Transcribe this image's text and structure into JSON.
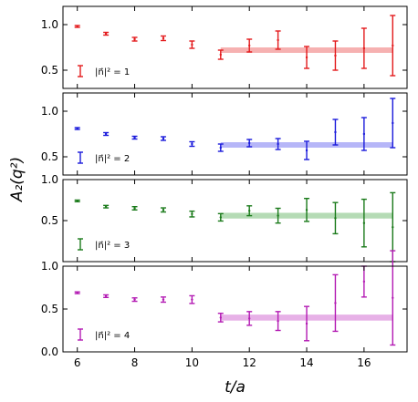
{
  "chart_data": [
    {
      "type": "scatter",
      "legend": "|n⃗|² = 1",
      "color": "#e31a1c",
      "band_color": "#f4a3a3",
      "ylim": [
        0.3,
        1.2
      ],
      "yticks": [
        0.5,
        1.0
      ],
      "ytick_labels": [
        "0.5",
        "1.0"
      ],
      "fit": {
        "x_start": 11,
        "x_end": 17,
        "value": 0.72,
        "err": 0.03
      },
      "points": [
        {
          "x": 6,
          "y": 0.98,
          "err": 0.01
        },
        {
          "x": 7,
          "y": 0.9,
          "err": 0.015
        },
        {
          "x": 8,
          "y": 0.84,
          "err": 0.02
        },
        {
          "x": 9,
          "y": 0.85,
          "err": 0.025
        },
        {
          "x": 10,
          "y": 0.78,
          "err": 0.04
        },
        {
          "x": 11,
          "y": 0.67,
          "err": 0.05
        },
        {
          "x": 12,
          "y": 0.77,
          "err": 0.07
        },
        {
          "x": 13,
          "y": 0.83,
          "err": 0.1
        },
        {
          "x": 14,
          "y": 0.64,
          "err": 0.12
        },
        {
          "x": 15,
          "y": 0.66,
          "err": 0.16
        },
        {
          "x": 16,
          "y": 0.74,
          "err": 0.22
        },
        {
          "x": 17,
          "y": 0.77,
          "err": 0.33
        }
      ]
    },
    {
      "type": "scatter",
      "legend": "|n⃗|² = 2",
      "color": "#1a1adb",
      "band_color": "#a9a9f7",
      "ylim": [
        0.3,
        1.2
      ],
      "yticks": [
        0.5,
        1.0
      ],
      "ytick_labels": [
        "0.5",
        "1.0"
      ],
      "fit": {
        "x_start": 11,
        "x_end": 17,
        "value": 0.63,
        "err": 0.03
      },
      "points": [
        {
          "x": 6,
          "y": 0.81,
          "err": 0.01
        },
        {
          "x": 7,
          "y": 0.75,
          "err": 0.015
        },
        {
          "x": 8,
          "y": 0.71,
          "err": 0.015
        },
        {
          "x": 9,
          "y": 0.7,
          "err": 0.02
        },
        {
          "x": 10,
          "y": 0.64,
          "err": 0.025
        },
        {
          "x": 11,
          "y": 0.6,
          "err": 0.04
        },
        {
          "x": 12,
          "y": 0.65,
          "err": 0.04
        },
        {
          "x": 13,
          "y": 0.64,
          "err": 0.06
        },
        {
          "x": 14,
          "y": 0.57,
          "err": 0.1
        },
        {
          "x": 15,
          "y": 0.77,
          "err": 0.14
        },
        {
          "x": 16,
          "y": 0.75,
          "err": 0.18
        },
        {
          "x": 17,
          "y": 0.87,
          "err": 0.27
        }
      ]
    },
    {
      "type": "scatter",
      "legend": "|n⃗|² = 3",
      "color": "#1a7a1a",
      "band_color": "#a8d5a8",
      "ylim": [
        0.0,
        1.0
      ],
      "yticks": [
        0.0,
        0.5,
        1.0
      ],
      "ytick_labels": [
        "",
        "0.5",
        "1.0"
      ],
      "fit": {
        "x_start": 11,
        "x_end": 17,
        "value": 0.56,
        "err": 0.035
      },
      "points": [
        {
          "x": 6,
          "y": 0.74,
          "err": 0.01
        },
        {
          "x": 7,
          "y": 0.67,
          "err": 0.015
        },
        {
          "x": 8,
          "y": 0.65,
          "err": 0.02
        },
        {
          "x": 9,
          "y": 0.63,
          "err": 0.025
        },
        {
          "x": 10,
          "y": 0.58,
          "err": 0.035
        },
        {
          "x": 11,
          "y": 0.54,
          "err": 0.045
        },
        {
          "x": 12,
          "y": 0.62,
          "err": 0.06
        },
        {
          "x": 13,
          "y": 0.56,
          "err": 0.09
        },
        {
          "x": 14,
          "y": 0.63,
          "err": 0.14
        },
        {
          "x": 15,
          "y": 0.53,
          "err": 0.19
        },
        {
          "x": 16,
          "y": 0.47,
          "err": 0.29
        },
        {
          "x": 17,
          "y": 0.42,
          "err": 0.42
        }
      ]
    },
    {
      "type": "scatter",
      "legend": "|n⃗|² = 4",
      "color": "#b31ab3",
      "band_color": "#e3a3e3",
      "ylim": [
        0.0,
        1.0
      ],
      "yticks": [
        0.0,
        0.5,
        1.0
      ],
      "ytick_labels": [
        "0.0",
        "0.5",
        "1.0"
      ],
      "fit": {
        "x_start": 11,
        "x_end": 17,
        "value": 0.4,
        "err": 0.035
      },
      "points": [
        {
          "x": 6,
          "y": 0.69,
          "err": 0.01
        },
        {
          "x": 7,
          "y": 0.65,
          "err": 0.015
        },
        {
          "x": 8,
          "y": 0.61,
          "err": 0.02
        },
        {
          "x": 9,
          "y": 0.61,
          "err": 0.03
        },
        {
          "x": 10,
          "y": 0.61,
          "err": 0.045
        },
        {
          "x": 11,
          "y": 0.4,
          "err": 0.05
        },
        {
          "x": 12,
          "y": 0.39,
          "err": 0.08
        },
        {
          "x": 13,
          "y": 0.36,
          "err": 0.11
        },
        {
          "x": 14,
          "y": 0.33,
          "err": 0.2
        },
        {
          "x": 15,
          "y": 0.57,
          "err": 0.33
        },
        {
          "x": 16,
          "y": 0.82,
          "err": 0.18
        },
        {
          "x": 17,
          "y": 0.63,
          "err": 0.55
        }
      ]
    }
  ],
  "shared": {
    "xlim": [
      5.5,
      17.5
    ],
    "xticks": [
      6,
      8,
      10,
      12,
      14,
      16
    ],
    "xlabel": "t/a",
    "ylabel": "A₂(q²)"
  }
}
